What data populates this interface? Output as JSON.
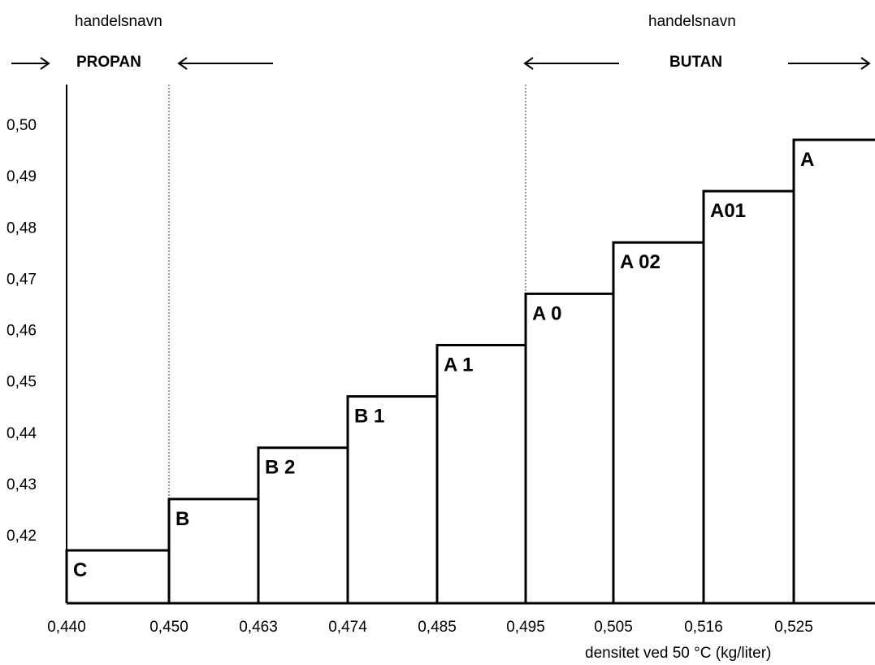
{
  "header": {
    "left_caption": "handelsnavn",
    "left_group": "PROPAN",
    "right_caption": "handelsnavn",
    "right_group": "BUTAN"
  },
  "chart_data": {
    "type": "bar",
    "xlabel": "densitet ved 50 °C (kg/liter)",
    "ylabel": "",
    "x_tick_labels": [
      "0,440",
      "0,450",
      "0,463",
      "0,474",
      "0,485",
      "0,495",
      "0,505",
      "0,516",
      "0,525"
    ],
    "y_tick_labels": [
      "0,42",
      "0,43",
      "0,44",
      "0,45",
      "0,46",
      "0,47",
      "0,48",
      "0,49",
      "0,50"
    ],
    "y_tick_values": [
      0.42,
      0.43,
      0.44,
      0.45,
      0.46,
      0.47,
      0.48,
      0.49,
      0.5
    ],
    "ylim": [
      0.4105,
      0.5
    ],
    "categories": [
      "C",
      "B",
      "B 2",
      "B 1",
      "A 1",
      "A 0",
      "A 02",
      "A01",
      "A"
    ],
    "values": [
      0.417,
      0.427,
      0.437,
      0.447,
      0.457,
      0.467,
      0.477,
      0.487,
      0.497
    ],
    "bar_x_start_labels": [
      "0,440",
      "0,450",
      "0,463",
      "0,474",
      "0,485",
      "0,495",
      "0,505",
      "0,516",
      "0,525"
    ],
    "dashed_boundaries": [
      "0,450",
      "0,495"
    ]
  }
}
